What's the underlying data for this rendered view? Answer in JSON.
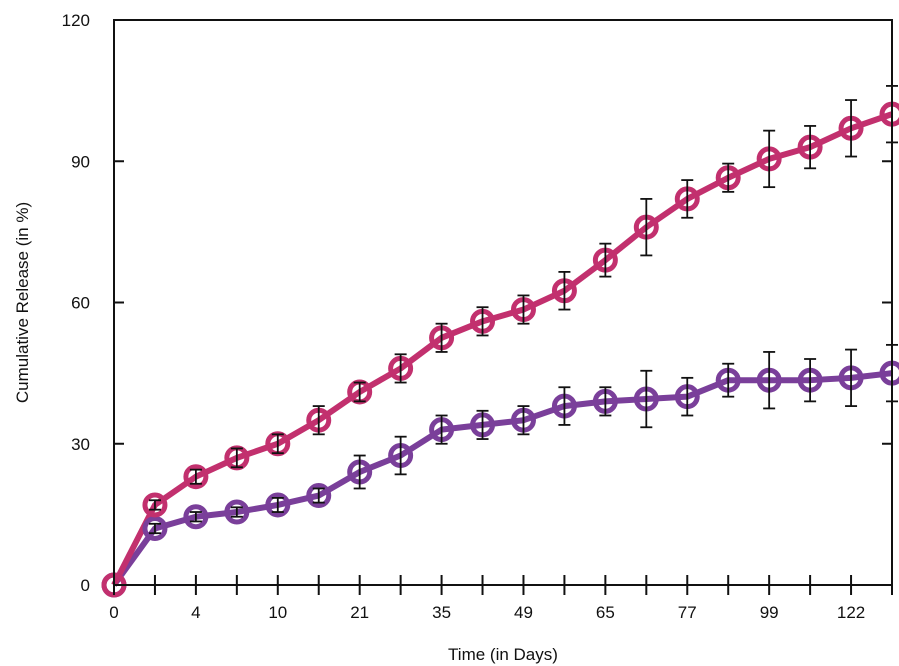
{
  "chart_data": {
    "type": "line",
    "title": "",
    "xlabel": "Time (in Days)",
    "ylabel": "Cumulative Release (in %)",
    "ylim": [
      0,
      120
    ],
    "yticks": [
      "0",
      "30",
      "60",
      "90",
      "120"
    ],
    "x_categories": [
      "0",
      "",
      "4",
      "",
      "10",
      "",
      "21",
      "",
      "35",
      "",
      "49",
      "",
      "65",
      "",
      "77",
      "",
      "99",
      "",
      "122",
      ""
    ],
    "grid": false,
    "legend": "none",
    "series": [
      {
        "color": "#c2306e",
        "values": [
          0,
          17,
          23,
          27,
          30,
          35,
          41,
          46,
          52.5,
          56,
          58.5,
          62.5,
          69,
          76,
          82,
          86.5,
          90.5,
          93,
          97,
          100
        ],
        "errors": [
          0,
          1,
          1.5,
          2,
          2,
          3,
          2,
          3,
          3,
          3,
          3,
          4,
          3.5,
          6,
          4,
          3,
          6,
          4.5,
          6,
          6
        ]
      },
      {
        "color": "#7a3f9a",
        "values": [
          0,
          12,
          14.5,
          15.5,
          17,
          19,
          24,
          27.5,
          33,
          34,
          35,
          38,
          39,
          39.5,
          40,
          43.5,
          43.5,
          43.5,
          44,
          45
        ],
        "errors": [
          0,
          1,
          1,
          1,
          1.5,
          1.5,
          3.5,
          4,
          3,
          3,
          3,
          4,
          3,
          6,
          4,
          3.5,
          6,
          4.5,
          6,
          6
        ]
      }
    ]
  }
}
